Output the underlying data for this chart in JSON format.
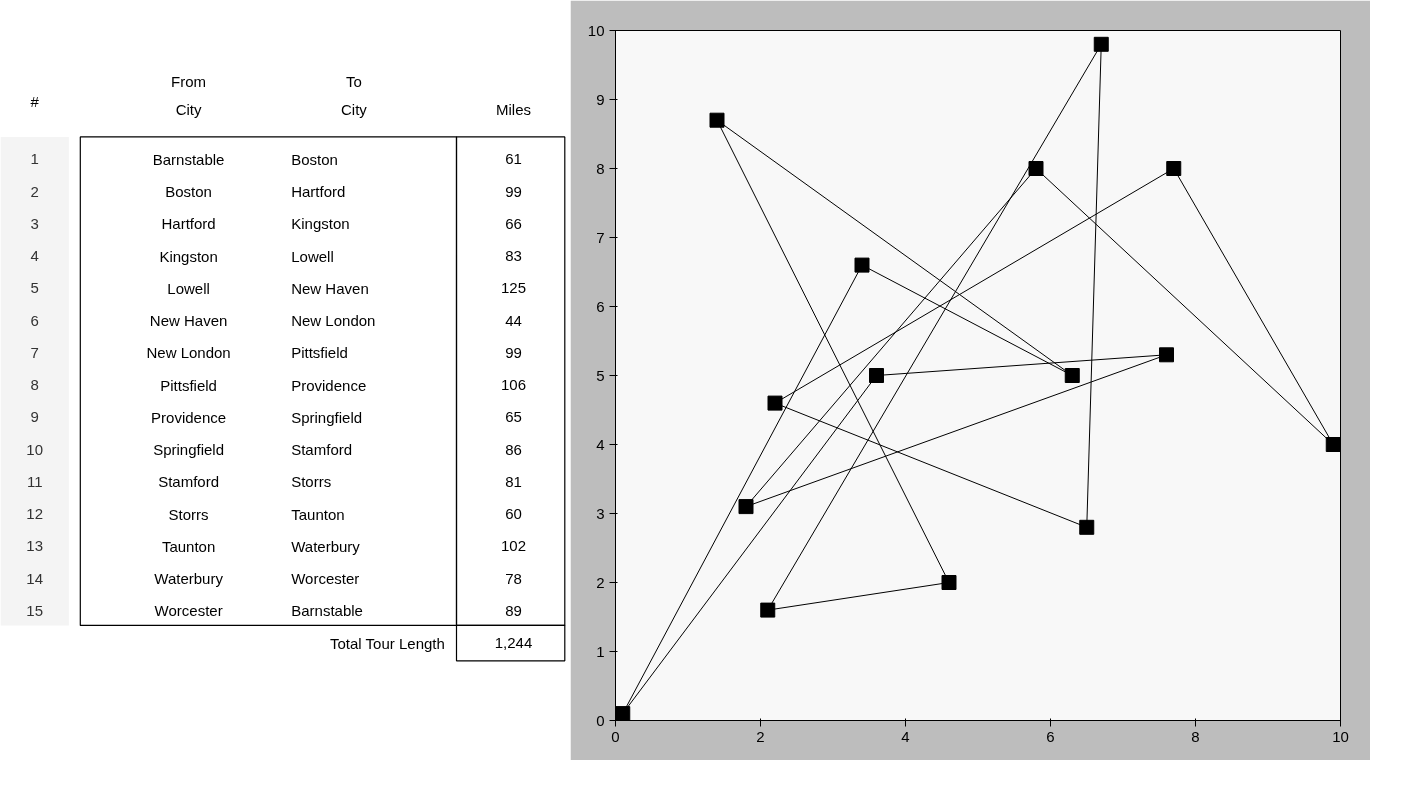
{
  "chart_data": [
    {
      "type": "heatmap",
      "ylabel": "#",
      "categories": [
        "From City",
        "To City",
        "Miles"
      ],
      "y_categories": [
        "1",
        "2",
        "3",
        "4",
        "5",
        "6",
        "7",
        "8",
        "9",
        "10",
        "11",
        "12",
        "13",
        "14",
        "15"
      ],
      "cells": [
        [
          null,
          null,
          null
        ],
        [
          null,
          null,
          null
        ],
        [
          null,
          null,
          null
        ],
        [
          null,
          null,
          null
        ],
        [
          null,
          null,
          null
        ],
        [
          null,
          null,
          null
        ],
        [
          null,
          null,
          null
        ],
        [
          null,
          null,
          null
        ],
        [
          null,
          null,
          null
        ],
        [
          null,
          null,
          null
        ],
        [
          null,
          null,
          null
        ],
        [
          null,
          null,
          null
        ],
        [
          null,
          null,
          null
        ],
        [
          null,
          null,
          null
        ],
        [
          null,
          null,
          null
        ]
      ],
      "cell_labels": [
        [
          "Barnstable",
          "Boston",
          "61"
        ],
        [
          "Boston",
          "Hartford",
          "99"
        ],
        [
          "Hartford",
          "Kingston",
          "66"
        ],
        [
          "Kingston",
          "Lowell",
          "83"
        ],
        [
          "Lowell",
          "New Haven",
          "125"
        ],
        [
          "New Haven",
          "New London",
          "44"
        ],
        [
          "New London",
          "Pittsfield",
          "99"
        ],
        [
          "Pittsfield",
          "Providence",
          "106"
        ],
        [
          "Providence",
          "Springfield",
          "65"
        ],
        [
          "Springfield",
          "Stamford",
          "86"
        ],
        [
          "Stamford",
          "Storrs",
          "81"
        ],
        [
          "Storrs",
          "Taunton",
          "60"
        ],
        [
          "Taunton",
          "Waterbury",
          "102"
        ],
        [
          "Waterbury",
          "Worcester",
          "78"
        ],
        [
          "Worcester",
          "Barnstable",
          "89"
        ]
      ],
      "annotations": [
        "Total Tour Length"
      ],
      "totals": [
        "1,244"
      ]
    },
    {
      "type": "line",
      "line_style": "solid",
      "grid": false,
      "xlim": [
        0,
        10
      ],
      "ylim": [
        0,
        10
      ],
      "xticks": [
        0,
        2,
        4,
        6,
        8,
        10
      ],
      "yticks": [
        0,
        1,
        2,
        3,
        4,
        5,
        6,
        7,
        8,
        9,
        10
      ],
      "series": [
        {
          "type": "scatter",
          "marker": "square",
          "color": "#000000",
          "x": [
            0.1,
            3.4,
            6.3,
            1.4,
            4.6,
            2.1,
            6.7,
            6.5,
            2.2,
            7.7,
            9.9,
            5.8,
            1.8,
            7.6,
            3.6
          ],
          "values": [
            0.1,
            6.6,
            5.0,
            8.7,
            2.0,
            1.6,
            9.8,
            2.8,
            4.6,
            8.0,
            4.0,
            8.0,
            3.1,
            5.3,
            5.0
          ]
        },
        {
          "color": "#000000",
          "x": [
            0.1,
            3.4
          ],
          "values": [
            0.1,
            6.6
          ]
        },
        {
          "color": "#000000",
          "x": [
            3.4,
            6.3
          ],
          "values": [
            6.6,
            5.0
          ]
        },
        {
          "color": "#000000",
          "x": [
            1.4,
            6.3
          ],
          "values": [
            8.7,
            5.0
          ]
        },
        {
          "color": "#000000",
          "x": [
            1.4,
            4.6
          ],
          "values": [
            8.7,
            2.0
          ]
        },
        {
          "color": "#000000",
          "x": [
            2.1,
            4.6
          ],
          "values": [
            1.6,
            2.0
          ]
        },
        {
          "color": "#000000",
          "x": [
            2.1,
            6.7
          ],
          "values": [
            1.6,
            9.8
          ]
        },
        {
          "color": "#000000",
          "x": [
            6.5,
            6.7
          ],
          "values": [
            2.8,
            9.8
          ]
        },
        {
          "color": "#000000",
          "x": [
            2.2,
            6.5
          ],
          "values": [
            4.6,
            2.8
          ]
        },
        {
          "color": "#000000",
          "x": [
            2.2,
            7.7
          ],
          "values": [
            4.6,
            8.0
          ]
        },
        {
          "color": "#000000",
          "x": [
            7.7,
            9.9
          ],
          "values": [
            8.0,
            4.0
          ]
        },
        {
          "color": "#000000",
          "x": [
            5.8,
            9.9
          ],
          "values": [
            8.0,
            4.0
          ]
        },
        {
          "color": "#000000",
          "x": [
            1.8,
            5.8
          ],
          "values": [
            3.1,
            8.0
          ]
        },
        {
          "color": "#000000",
          "x": [
            1.8,
            7.6
          ],
          "values": [
            3.1,
            5.3
          ]
        },
        {
          "color": "#000000",
          "x": [
            3.6,
            7.6
          ],
          "values": [
            5.0,
            5.3
          ]
        },
        {
          "color": "#000000",
          "x": [
            0.1,
            3.6
          ],
          "values": [
            0.1,
            5.0
          ]
        }
      ]
    }
  ]
}
